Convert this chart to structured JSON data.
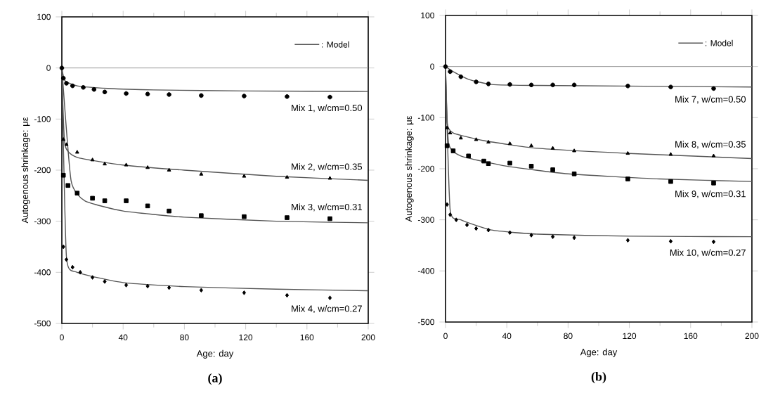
{
  "chart_data": [
    {
      "type": "scatter",
      "title": "(a)",
      "xlabel": "Age: day",
      "ylabel": "Autogenous shrinkage: με",
      "xlim": [
        0,
        200
      ],
      "ylim": [
        -500,
        100
      ],
      "xticks": [
        0,
        40,
        80,
        120,
        160,
        200
      ],
      "yticks": [
        -500,
        -400,
        -300,
        -200,
        -100,
        0,
        100
      ],
      "legend": "top right",
      "grid": false,
      "ref_lines": [
        {
          "axis": "y",
          "value": 0,
          "color": "#999999"
        }
      ],
      "series": [
        {
          "name": "Mix 1, w/cm=0.50",
          "marker": "circle",
          "color": "#000000",
          "x": [
            0,
            1,
            3,
            7,
            14,
            21,
            28,
            42,
            56,
            70,
            91,
            119,
            147,
            175
          ],
          "values": [
            0,
            -20,
            -30,
            -35,
            -38,
            -42,
            -47,
            -50,
            -51,
            -52,
            -54,
            -55,
            -56,
            -57
          ]
        },
        {
          "name": "Mix 2, w/cm=0.35",
          "marker": "triangle",
          "color": "#000000",
          "x": [
            1,
            3,
            10,
            20,
            28,
            42,
            56,
            70,
            91,
            119,
            147,
            175
          ],
          "values": [
            -140,
            -150,
            -165,
            -180,
            -188,
            -190,
            -195,
            -200,
            -208,
            -212,
            -214,
            -216
          ]
        },
        {
          "name": "Mix 3, w/cm=0.31",
          "marker": "square",
          "color": "#000000",
          "x": [
            1,
            4,
            10,
            20,
            28,
            42,
            56,
            70,
            91,
            119,
            147,
            175
          ],
          "values": [
            -210,
            -230,
            -245,
            -255,
            -260,
            -260,
            -270,
            -280,
            -289,
            -291,
            -293,
            -295
          ]
        },
        {
          "name": "Mix 4, w/cm=0.27",
          "marker": "diamond",
          "color": "#000000",
          "x": [
            1,
            3,
            7,
            12,
            20,
            28,
            42,
            56,
            70,
            91,
            119,
            147,
            175
          ],
          "values": [
            -350,
            -375,
            -390,
            -400,
            -410,
            -418,
            -425,
            -427,
            -430,
            -435,
            -440,
            -445,
            -450
          ]
        },
        {
          "name": ": Model",
          "type": "line",
          "color": "#555555",
          "x": [
            0,
            2,
            10,
            30,
            60,
            120,
            200
          ],
          "values": [
            0,
            -25,
            -35,
            -40,
            -43,
            -45,
            -46
          ]
        },
        {
          "type": "line",
          "color": "#555555",
          "x": [
            0,
            2,
            10,
            40,
            80,
            140,
            200
          ],
          "values": [
            0,
            -150,
            -175,
            -190,
            -200,
            -212,
            -220
          ]
        },
        {
          "type": "line",
          "color": "#555555",
          "x": [
            0,
            6,
            15,
            40,
            80,
            140,
            200
          ],
          "values": [
            0,
            -220,
            -260,
            -280,
            -292,
            -300,
            -303
          ]
        },
        {
          "type": "line",
          "color": "#555555",
          "x": [
            0,
            3,
            10,
            40,
            80,
            140,
            200
          ],
          "values": [
            0,
            -370,
            -400,
            -420,
            -428,
            -433,
            -436
          ]
        }
      ]
    },
    {
      "type": "scatter",
      "title": "(b)",
      "xlabel": "Age: day",
      "ylabel": "Autogenous shrinkage: με",
      "xlim": [
        0,
        200
      ],
      "ylim": [
        -500,
        100
      ],
      "xticks": [
        0,
        40,
        80,
        120,
        160,
        200
      ],
      "yticks": [
        -500,
        -400,
        -300,
        -200,
        -100,
        0,
        100
      ],
      "legend": "top right",
      "grid": false,
      "ref_lines": [
        {
          "axis": "y",
          "value": 0,
          "color": "#999999"
        }
      ],
      "series": [
        {
          "name": "Mix 7, w/cm=0.50",
          "marker": "circle",
          "color": "#000000",
          "x": [
            0,
            3,
            10,
            20,
            28,
            42,
            56,
            70,
            84,
            119,
            147,
            175
          ],
          "values": [
            0,
            -10,
            -20,
            -30,
            -34,
            -35,
            -36,
            -36,
            -36,
            -38,
            -40,
            -43
          ]
        },
        {
          "name": "Mix 8, w/cm=0.35",
          "marker": "triangle",
          "color": "#000000",
          "x": [
            1,
            3,
            10,
            20,
            28,
            42,
            56,
            70,
            84,
            119,
            147,
            175
          ],
          "values": [
            -120,
            -130,
            -140,
            -143,
            -148,
            -151,
            -155,
            -160,
            -165,
            -170,
            -172,
            -175
          ]
        },
        {
          "name": "Mix 9, w/cm=0.31",
          "marker": "square",
          "color": "#000000",
          "x": [
            1,
            5,
            15,
            25,
            28,
            42,
            56,
            70,
            84,
            119,
            147,
            175
          ],
          "values": [
            -155,
            -165,
            -175,
            -185,
            -190,
            -189,
            -195,
            -202,
            -210,
            -220,
            -225,
            -228
          ]
        },
        {
          "name": "Mix 10, w/cm=0.27",
          "marker": "diamond",
          "color": "#000000",
          "x": [
            1,
            3,
            7,
            14,
            20,
            28,
            42,
            56,
            70,
            84,
            119,
            147,
            175
          ],
          "values": [
            -270,
            -290,
            -300,
            -310,
            -317,
            -320,
            -325,
            -330,
            -333,
            -335,
            -340,
            -342,
            -343
          ]
        },
        {
          "name": ": Model",
          "type": "line",
          "color": "#555555",
          "x": [
            0,
            5,
            15,
            30,
            60,
            200
          ],
          "values": [
            0,
            -10,
            -25,
            -35,
            -37,
            -40
          ]
        },
        {
          "type": "line",
          "color": "#555555",
          "x": [
            0,
            1,
            5,
            25,
            60,
            120,
            200
          ],
          "values": [
            0,
            -110,
            -130,
            -145,
            -160,
            -170,
            -180
          ]
        },
        {
          "type": "line",
          "color": "#555555",
          "x": [
            0,
            2,
            10,
            40,
            80,
            140,
            200
          ],
          "values": [
            0,
            -150,
            -175,
            -195,
            -210,
            -220,
            -225
          ]
        },
        {
          "type": "line",
          "color": "#555555",
          "x": [
            0,
            3,
            10,
            30,
            60,
            120,
            200
          ],
          "values": [
            0,
            -280,
            -300,
            -320,
            -328,
            -332,
            -333
          ]
        }
      ]
    }
  ]
}
